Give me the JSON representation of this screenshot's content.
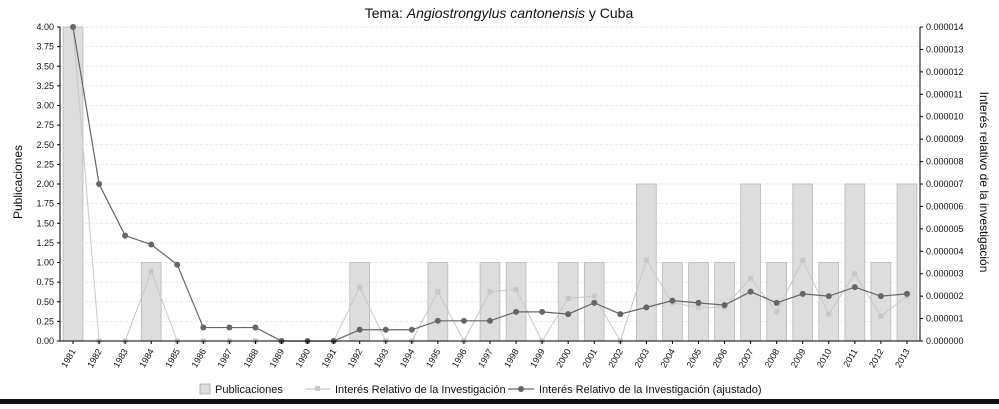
{
  "chart_data": {
    "type": "bar+line",
    "title_prefix": "Tema: ",
    "title_italic": "Angiostrongylus cantonensis",
    "title_suffix": " y Cuba",
    "title": "Tema: Angiostrongylus cantonensis y Cuba",
    "xlabel": "",
    "ylabel": "Publicaciones",
    "y2label": "Interés relativo de la investigación",
    "ylim": [
      0,
      4.0
    ],
    "y2lim": [
      0,
      1.4e-05
    ],
    "y_ticks": [
      "0.00",
      "0.25",
      "0.50",
      "0.75",
      "1.00",
      "1.25",
      "1.50",
      "1.75",
      "2.00",
      "2.25",
      "2.50",
      "2.75",
      "3.00",
      "3.25",
      "3.50",
      "3.75",
      "4.00"
    ],
    "y2_ticks": [
      "0.000000",
      "0.000001",
      "0.000002",
      "0.000003",
      "0.000004",
      "0.000005",
      "0.000006",
      "0.000007",
      "0.000008",
      "0.000009",
      "0.000010",
      "0.000011",
      "0.000012",
      "0.000013",
      "0.000014"
    ],
    "categories": [
      "1981",
      "1982",
      "1983",
      "1984",
      "1985",
      "1986",
      "1987",
      "1988",
      "1989",
      "1990",
      "1991",
      "1992",
      "1993",
      "1994",
      "1995",
      "1996",
      "1997",
      "1998",
      "1999",
      "2000",
      "2001",
      "2002",
      "2003",
      "2004",
      "2005",
      "2006",
      "2007",
      "2008",
      "2009",
      "2010",
      "2011",
      "2012",
      "2013"
    ],
    "series": [
      {
        "name": "Publicaciones",
        "kind": "bar",
        "axis": "left",
        "color": "#dddddd",
        "values": [
          4,
          0,
          0,
          1,
          0,
          0,
          0,
          0,
          0,
          0,
          0,
          1,
          0,
          0,
          1,
          0,
          1,
          1,
          0,
          1,
          1,
          0,
          2,
          1,
          1,
          1,
          2,
          1,
          2,
          1,
          2,
          1,
          2
        ]
      },
      {
        "name": "Interés Relativo de la Investigación",
        "kind": "line",
        "axis": "right",
        "color": "#c8c8c8",
        "marker": "square",
        "values": [
          1.4e-05,
          0,
          0,
          3.1e-06,
          0,
          0,
          0,
          0,
          0,
          0,
          0,
          2.4e-06,
          0,
          0,
          2.2e-06,
          0,
          2.2e-06,
          2.3e-06,
          0,
          1.9e-06,
          2e-06,
          0,
          3.6e-06,
          1.7e-06,
          1.5e-06,
          1.5e-06,
          2.8e-06,
          1.3e-06,
          3.6e-06,
          1.2e-06,
          3e-06,
          1.1e-06,
          2e-06
        ]
      },
      {
        "name": "Interés Relativo de la Investigación (ajustado)",
        "kind": "line",
        "axis": "right",
        "color": "#666666",
        "marker": "circle",
        "values": [
          1.4e-05,
          7e-06,
          4.7e-06,
          4.3e-06,
          3.4e-06,
          6e-07,
          6e-07,
          6e-07,
          0,
          0,
          0,
          5e-07,
          5e-07,
          5e-07,
          9e-07,
          9e-07,
          9e-07,
          1.3e-06,
          1.3e-06,
          1.2e-06,
          1.7e-06,
          1.2e-06,
          1.5e-06,
          1.8e-06,
          1.7e-06,
          1.6e-06,
          2.2e-06,
          1.7e-06,
          2.1e-06,
          2e-06,
          2.4e-06,
          2e-06,
          2.1e-06
        ]
      }
    ],
    "legend": [
      "Publicaciones",
      "Interés Relativo de la Investigación",
      "Interés Relativo de la Investigación (ajustado)"
    ],
    "legend_position": "bottom",
    "grid": true
  }
}
